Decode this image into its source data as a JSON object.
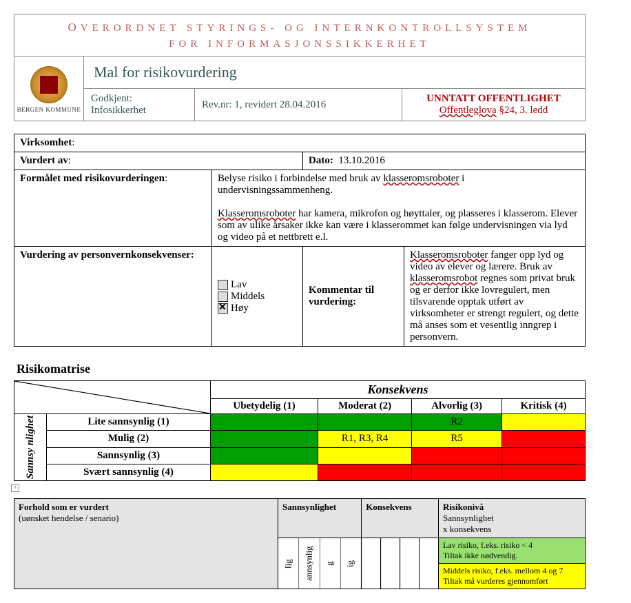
{
  "banner_line1": "OVERORDNET STYRINGS- OG INTERNKONTROLLSYSTEM",
  "banner_line2": "FOR INFORMASJONSSIKKERHET",
  "logo_caption": "BERGEN KOMMUNE",
  "title": "Mal for risikovurdering",
  "godkjent_label": "Godkjent:",
  "godkjent_value": "Infosikkerhet",
  "rev": "Rev.nr: 1, revidert 28.04.2016",
  "unntatt1": "UNNTATT OFFENTLIGHET",
  "unntatt_law": "Offentleglova",
  "unntatt_rest": " §24, 3. ledd",
  "virksomhet_label": "Virksomhet",
  "vurdert_label": "Vurdert av",
  "dato_label": "Dato:",
  "dato_value": "13.10.2016",
  "formalet_label": "Formålet med risikovurderingen",
  "formalet_p1a": "Belyse risiko i forbindelse med bruk av ",
  "formalet_p1_wavy": "klasseromsroboter",
  "formalet_p1b": " i undervisningssammenheng.",
  "formalet_p2_wavy": "Klasseromsroboter",
  "formalet_p2_rest": " har kamera, mikrofon og høyttaler, og plasseres i klasserom. Elever som av ulike årsaker ikke kan være i klasserommet kan følge undervisningen via lyd og video på et nettbrett e.l.",
  "vurdering_label": "Vurdering av personvernkonsekvenser:",
  "opt_lav": "Lav",
  "opt_middels": "Middels",
  "opt_hoy": "Høy",
  "selected_level": "Høy",
  "kommentar_label": "Kommentar til vurdering:",
  "kommentar_wavy1": "Klasseromsroboter",
  "kommentar_mid1": " fanger opp lyd og video av elever og lærere. Bruk av ",
  "kommentar_wavy2": "klasseromsrobot",
  "kommentar_mid2": " regnes som privat bruk og er derfor ikke lovregulert, men tilsvarende opptak utført av virksomheter er strengt regulert, og dette må anses som et vesentlig inngrep i personvern.",
  "matrix_title": "Risikomatrise",
  "matrix_col_header": "Konsekvens",
  "matrix_row_header": "Sannsy\nnlighet",
  "matrix_cols": [
    "Ubetydelig (1)",
    "Moderat (2)",
    "Alvorlig (3)",
    "Kritisk (4)"
  ],
  "matrix_rows": [
    "Lite sannsynlig (1)",
    "Mulig (2)",
    "Sannsynlig (3)",
    "Svært sannsynlig (4)"
  ],
  "matrix": {
    "colors": [
      [
        "green",
        "green",
        "green",
        "yellow"
      ],
      [
        "green",
        "yellow",
        "yellow",
        "red"
      ],
      [
        "green",
        "yellow",
        "red",
        "red"
      ],
      [
        "yellow",
        "red",
        "red",
        "red"
      ]
    ],
    "labels": [
      [
        "",
        "",
        "R2",
        ""
      ],
      [
        "",
        "R1, R3, R4",
        "R5",
        ""
      ],
      [
        "",
        "",
        "",
        ""
      ],
      [
        "",
        "",
        "",
        ""
      ]
    ]
  },
  "risk_hdr_forhold": "Forhold som er vurdert",
  "risk_hdr_forhold_sub": "(uønsket hendelse / senario)",
  "risk_hdr_sanns": "Sannsynlighet",
  "risk_hdr_kons": "Konsekvens",
  "risk_hdr_niva": "Risikonivå",
  "risk_hdr_niva_sub": "Sannsynlighet\nx konsekvens",
  "risk_sub_rows": [
    "lig",
    "annsynlig",
    "g",
    "ig"
  ],
  "risk_low": "Lav risiko, f.eks. risiko < 4\nTiltak ikke nødvendig.",
  "risk_mid": "Middels risiko, f.eks. mellom 4 og 7\nTiltak må vurderes gjennomført",
  "colors": {
    "brand_text": "#c05a5a",
    "teal_text": "#355555",
    "red_text": "#b00000",
    "green": "#00a000",
    "yellow": "#ffff00",
    "red": "#ff0000",
    "lime": "#99e070",
    "header_bg": "#e4e4e4"
  }
}
